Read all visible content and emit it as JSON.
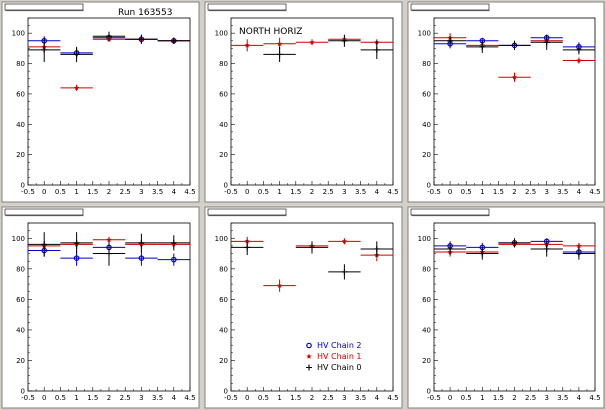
{
  "colors": {
    "background": "#d4d0c8",
    "frame": "#ffffff",
    "chain2": "#0000cc",
    "chain1": "#cc0000",
    "chain0": "#000000"
  },
  "chart_data": [
    {
      "type": "scatter",
      "title": "",
      "annotation": "Run 163553",
      "xlim": [
        -0.5,
        4.5
      ],
      "ylim": [
        0,
        110
      ],
      "xticks": [
        "-0.5",
        "0",
        "0.5",
        "1",
        "1.5",
        "2",
        "2.5",
        "3",
        "3.5",
        "4",
        "4.5"
      ],
      "yticks": [
        "0",
        "20",
        "40",
        "60",
        "80",
        "100"
      ],
      "series": [
        {
          "color": "#0000cc",
          "marker": "circle",
          "points": [
            {
              "x": 0,
              "y": 95,
              "err": 3
            },
            {
              "x": 1,
              "y": 87,
              "err": 3
            },
            {
              "x": 2,
              "y": 97,
              "err": 2
            },
            {
              "x": 3,
              "y": 96,
              "err": 3
            },
            {
              "x": 4,
              "y": 95,
              "err": 2
            }
          ]
        },
        {
          "color": "#cc0000",
          "marker": "star",
          "points": [
            {
              "x": 0,
              "y": 91,
              "err": 3
            },
            {
              "x": 1,
              "y": 64,
              "err": 2
            },
            {
              "x": 2,
              "y": 96,
              "err": 2
            },
            {
              "x": 3,
              "y": 96,
              "err": 2
            },
            {
              "x": 4,
              "y": 95,
              "err": 2
            }
          ]
        },
        {
          "color": "#000000",
          "marker": "plus",
          "points": [
            {
              "x": 0,
              "y": 89,
              "err": 8
            },
            {
              "x": 1,
              "y": 86,
              "err": 5
            },
            {
              "x": 2,
              "y": 98,
              "err": 3
            },
            {
              "x": 3,
              "y": 96,
              "err": 3
            },
            {
              "x": 4,
              "y": 95,
              "err": 2
            }
          ]
        }
      ]
    },
    {
      "type": "scatter",
      "title": "",
      "annotation": "NORTH HORIZ",
      "xlim": [
        -0.5,
        4.5
      ],
      "ylim": [
        0,
        110
      ],
      "xticks": [
        "-0.5",
        "0",
        "0.5",
        "1",
        "1.5",
        "2",
        "2.5",
        "3",
        "3.5",
        "4",
        "4.5"
      ],
      "yticks": [
        "0",
        "20",
        "40",
        "60",
        "80",
        "100"
      ],
      "series": [
        {
          "color": "#0000cc",
          "marker": "circle",
          "points": []
        },
        {
          "color": "#cc0000",
          "marker": "star",
          "points": [
            {
              "x": 0,
              "y": 92,
              "err": 4
            },
            {
              "x": 1,
              "y": 93,
              "err": 4
            },
            {
              "x": 2,
              "y": 94,
              "err": 2
            },
            {
              "x": 3,
              "y": 96,
              "err": 2
            },
            {
              "x": 4,
              "y": 94,
              "err": 2
            }
          ]
        },
        {
          "color": "#000000",
          "marker": "plus",
          "points": [
            {
              "x": 1,
              "y": 86,
              "err": 5
            },
            {
              "x": 3,
              "y": 95,
              "err": 4
            },
            {
              "x": 4,
              "y": 89,
              "err": 6
            }
          ]
        }
      ]
    },
    {
      "type": "scatter",
      "title": "",
      "annotation": "",
      "xlim": [
        -0.5,
        4.5
      ],
      "ylim": [
        0,
        110
      ],
      "xticks": [
        "-0.5",
        "0",
        "0.5",
        "1",
        "1.5",
        "2",
        "2.5",
        "3",
        "3.5",
        "4",
        "4.5"
      ],
      "yticks": [
        "0",
        "20",
        "40",
        "60",
        "80",
        "100"
      ],
      "series": [
        {
          "color": "#0000cc",
          "marker": "circle",
          "points": [
            {
              "x": 0,
              "y": 93,
              "err": 3
            },
            {
              "x": 1,
              "y": 95,
              "err": 2
            },
            {
              "x": 2,
              "y": 92,
              "err": 3
            },
            {
              "x": 3,
              "y": 97,
              "err": 2
            },
            {
              "x": 4,
              "y": 91,
              "err": 3
            }
          ]
        },
        {
          "color": "#cc0000",
          "marker": "star",
          "points": [
            {
              "x": 0,
              "y": 97,
              "err": 3
            },
            {
              "x": 1,
              "y": 92,
              "err": 2
            },
            {
              "x": 2,
              "y": 71,
              "err": 3
            },
            {
              "x": 3,
              "y": 95,
              "err": 2
            },
            {
              "x": 4,
              "y": 82,
              "err": 2
            }
          ]
        },
        {
          "color": "#000000",
          "marker": "plus",
          "points": [
            {
              "x": 0,
              "y": 95,
              "err": 3
            },
            {
              "x": 1,
              "y": 91,
              "err": 4
            },
            {
              "x": 2,
              "y": 92,
              "err": 3
            },
            {
              "x": 3,
              "y": 94,
              "err": 5
            },
            {
              "x": 4,
              "y": 89,
              "err": 3
            }
          ]
        }
      ]
    },
    {
      "type": "scatter",
      "title": "",
      "annotation": "",
      "xlim": [
        -0.5,
        4.5
      ],
      "ylim": [
        0,
        110
      ],
      "xticks": [
        "-0.5",
        "0",
        "0.5",
        "1",
        "1.5",
        "2",
        "2.5",
        "3",
        "3.5",
        "4",
        "4.5"
      ],
      "yticks": [
        "0",
        "20",
        "40",
        "60",
        "80",
        "100"
      ],
      "series": [
        {
          "color": "#0000cc",
          "marker": "circle",
          "points": [
            {
              "x": 0,
              "y": 92,
              "err": 4
            },
            {
              "x": 1,
              "y": 87,
              "err": 5
            },
            {
              "x": 2,
              "y": 94,
              "err": 4
            },
            {
              "x": 3,
              "y": 87,
              "err": 5
            },
            {
              "x": 4,
              "y": 86,
              "err": 4
            }
          ]
        },
        {
          "color": "#cc0000",
          "marker": "star",
          "points": [
            {
              "x": 0,
              "y": 95,
              "err": 3
            },
            {
              "x": 1,
              "y": 96,
              "err": 3
            },
            {
              "x": 2,
              "y": 99,
              "err": 2
            },
            {
              "x": 3,
              "y": 96,
              "err": 3
            },
            {
              "x": 4,
              "y": 96,
              "err": 2
            }
          ]
        },
        {
          "color": "#000000",
          "marker": "plus",
          "points": [
            {
              "x": 0,
              "y": 96,
              "err": 8
            },
            {
              "x": 1,
              "y": 97,
              "err": 7
            },
            {
              "x": 2,
              "y": 90,
              "err": 8
            },
            {
              "x": 3,
              "y": 97,
              "err": 6
            },
            {
              "x": 4,
              "y": 97,
              "err": 5
            }
          ]
        }
      ]
    },
    {
      "type": "scatter",
      "title": "",
      "annotation": "",
      "xlim": [
        -0.5,
        4.5
      ],
      "ylim": [
        0,
        110
      ],
      "xticks": [
        "-0.5",
        "0",
        "0.5",
        "1",
        "1.5",
        "2",
        "2.5",
        "3",
        "3.5",
        "4",
        "4.5"
      ],
      "yticks": [
        "0",
        "20",
        "40",
        "60",
        "80",
        "100"
      ],
      "legend": {
        "placement": "bottom-right",
        "entries": [
          {
            "label": "HV Chain 2",
            "color": "#0000cc",
            "marker": "circle"
          },
          {
            "label": "HV Chain 1",
            "color": "#cc0000",
            "marker": "star"
          },
          {
            "label": "HV Chain 0",
            "color": "#000000",
            "marker": "plus"
          }
        ]
      },
      "series": [
        {
          "color": "#0000cc",
          "marker": "circle",
          "points": []
        },
        {
          "color": "#cc0000",
          "marker": "star",
          "points": [
            {
              "x": 0,
              "y": 98,
              "err": 3
            },
            {
              "x": 1,
              "y": 69,
              "err": 4
            },
            {
              "x": 2,
              "y": 95,
              "err": 3
            },
            {
              "x": 3,
              "y": 98,
              "err": 2
            },
            {
              "x": 4,
              "y": 89,
              "err": 4
            }
          ]
        },
        {
          "color": "#000000",
          "marker": "plus",
          "points": [
            {
              "x": 0,
              "y": 94,
              "err": 5
            },
            {
              "x": 2,
              "y": 94,
              "err": 4
            },
            {
              "x": 3,
              "y": 78,
              "err": 5
            },
            {
              "x": 4,
              "y": 93,
              "err": 5
            }
          ]
        }
      ]
    },
    {
      "type": "scatter",
      "title": "",
      "annotation": "",
      "xlim": [
        -0.5,
        4.5
      ],
      "ylim": [
        0,
        110
      ],
      "xticks": [
        "-0.5",
        "0",
        "0.5",
        "1",
        "1.5",
        "2",
        "2.5",
        "3",
        "3.5",
        "4",
        "4.5"
      ],
      "yticks": [
        "0",
        "20",
        "40",
        "60",
        "80",
        "100"
      ],
      "series": [
        {
          "color": "#0000cc",
          "marker": "circle",
          "points": [
            {
              "x": 0,
              "y": 95,
              "err": 3
            },
            {
              "x": 1,
              "y": 94,
              "err": 3
            },
            {
              "x": 2,
              "y": 97,
              "err": 2
            },
            {
              "x": 3,
              "y": 98,
              "err": 2
            },
            {
              "x": 4,
              "y": 91,
              "err": 3
            }
          ]
        },
        {
          "color": "#cc0000",
          "marker": "star",
          "points": [
            {
              "x": 0,
              "y": 91,
              "err": 3
            },
            {
              "x": 1,
              "y": 91,
              "err": 2
            },
            {
              "x": 2,
              "y": 96,
              "err": 2
            },
            {
              "x": 3,
              "y": 96,
              "err": 2
            },
            {
              "x": 4,
              "y": 95,
              "err": 2
            }
          ]
        },
        {
          "color": "#000000",
          "marker": "plus",
          "points": [
            {
              "x": 0,
              "y": 93,
              "err": 4
            },
            {
              "x": 1,
              "y": 90,
              "err": 4
            },
            {
              "x": 2,
              "y": 97,
              "err": 3
            },
            {
              "x": 3,
              "y": 93,
              "err": 5
            },
            {
              "x": 4,
              "y": 90,
              "err": 4
            }
          ]
        }
      ]
    }
  ]
}
